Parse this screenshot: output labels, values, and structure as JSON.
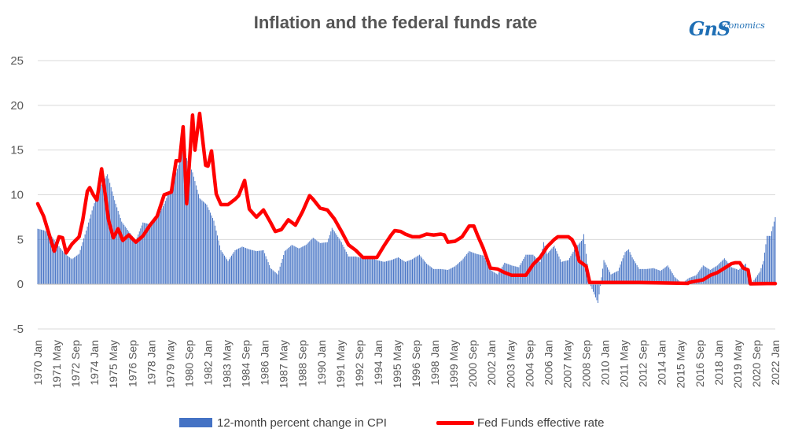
{
  "chart_data": {
    "type": "bar",
    "title": "Inflation and the federal funds rate",
    "ylim": [
      -5,
      25
    ],
    "y_ticks": [
      -5,
      0,
      5,
      10,
      15,
      20,
      25
    ],
    "x_tick_labels": [
      "1970 Jan",
      "1971 May",
      "1972 Sep",
      "1974 Jan",
      "1975 May",
      "1976 Sep",
      "1978 Jan",
      "1979 May",
      "1980 Sep",
      "1982 Jan",
      "1983 May",
      "1984 Sep",
      "1986 Jan",
      "1987 May",
      "1988 Sep",
      "1990 Jan",
      "1991 May",
      "1992 Sep",
      "1994 Jan",
      "1995 May",
      "1996 Sep",
      "1998 Jan",
      "1999 May",
      "2000 Sep",
      "2002 Jan",
      "2003 May",
      "2004 Sep",
      "2006 Jan",
      "2007 May",
      "2008 Sep",
      "2010 Jan",
      "2011 May",
      "2012 Sep",
      "2014 Jan",
      "2015 May",
      "2016 Sep",
      "2018 Jan",
      "2019 May",
      "2020 Sep",
      "2022 Jan"
    ],
    "x_range": [
      "1970-01",
      "2022-01"
    ],
    "legend_position": "bottom",
    "gridlines": true,
    "series": [
      {
        "name": "12-month percent change in CPI",
        "kind": "bar",
        "color": "#4472c4",
        "points": [
          [
            "1970-01",
            6.2
          ],
          [
            "1970-07",
            6.0
          ],
          [
            "1971-01",
            5.3
          ],
          [
            "1971-06",
            4.4
          ],
          [
            "1971-12",
            3.4
          ],
          [
            "1972-06",
            2.8
          ],
          [
            "1972-12",
            3.4
          ],
          [
            "1973-06",
            6.0
          ],
          [
            "1973-12",
            8.7
          ],
          [
            "1974-06",
            10.9
          ],
          [
            "1974-12",
            12.3
          ],
          [
            "1975-06",
            9.4
          ],
          [
            "1975-12",
            7.0
          ],
          [
            "1976-06",
            5.9
          ],
          [
            "1976-12",
            4.9
          ],
          [
            "1977-06",
            6.9
          ],
          [
            "1977-12",
            6.7
          ],
          [
            "1978-06",
            7.4
          ],
          [
            "1978-12",
            9.0
          ],
          [
            "1979-06",
            10.9
          ],
          [
            "1979-12",
            13.3
          ],
          [
            "1980-03",
            14.8
          ],
          [
            "1980-06",
            14.4
          ],
          [
            "1980-12",
            12.5
          ],
          [
            "1981-06",
            9.6
          ],
          [
            "1981-12",
            8.9
          ],
          [
            "1982-06",
            7.1
          ],
          [
            "1982-12",
            3.8
          ],
          [
            "1983-06",
            2.6
          ],
          [
            "1983-12",
            3.8
          ],
          [
            "1984-06",
            4.2
          ],
          [
            "1984-12",
            3.9
          ],
          [
            "1985-06",
            3.7
          ],
          [
            "1985-12",
            3.8
          ],
          [
            "1986-06",
            1.8
          ],
          [
            "1986-12",
            1.1
          ],
          [
            "1987-06",
            3.7
          ],
          [
            "1987-12",
            4.4
          ],
          [
            "1988-06",
            4.0
          ],
          [
            "1988-12",
            4.4
          ],
          [
            "1989-06",
            5.2
          ],
          [
            "1989-12",
            4.6
          ],
          [
            "1990-06",
            4.7
          ],
          [
            "1990-10",
            6.3
          ],
          [
            "1991-06",
            4.7
          ],
          [
            "1991-12",
            3.1
          ],
          [
            "1992-06",
            3.1
          ],
          [
            "1992-12",
            2.9
          ],
          [
            "1993-06",
            3.0
          ],
          [
            "1993-12",
            2.7
          ],
          [
            "1994-06",
            2.5
          ],
          [
            "1994-12",
            2.7
          ],
          [
            "1995-06",
            3.0
          ],
          [
            "1995-12",
            2.5
          ],
          [
            "1996-06",
            2.8
          ],
          [
            "1996-12",
            3.3
          ],
          [
            "1997-06",
            2.3
          ],
          [
            "1997-12",
            1.7
          ],
          [
            "1998-06",
            1.7
          ],
          [
            "1998-12",
            1.6
          ],
          [
            "1999-06",
            2.0
          ],
          [
            "1999-12",
            2.7
          ],
          [
            "2000-06",
            3.7
          ],
          [
            "2000-12",
            3.4
          ],
          [
            "2001-06",
            3.2
          ],
          [
            "2001-12",
            1.6
          ],
          [
            "2002-06",
            1.1
          ],
          [
            "2002-12",
            2.4
          ],
          [
            "2003-06",
            2.1
          ],
          [
            "2003-12",
            1.9
          ],
          [
            "2004-06",
            3.3
          ],
          [
            "2004-12",
            3.3
          ],
          [
            "2005-06",
            2.5
          ],
          [
            "2005-09",
            4.7
          ],
          [
            "2005-12",
            3.4
          ],
          [
            "2006-06",
            4.3
          ],
          [
            "2006-12",
            2.5
          ],
          [
            "2007-06",
            2.7
          ],
          [
            "2007-12",
            4.1
          ],
          [
            "2008-06",
            5.0
          ],
          [
            "2008-07",
            5.6
          ],
          [
            "2008-12",
            0.1
          ],
          [
            "2009-07",
            -2.1
          ],
          [
            "2009-12",
            2.7
          ],
          [
            "2010-06",
            1.1
          ],
          [
            "2010-12",
            1.5
          ],
          [
            "2011-06",
            3.6
          ],
          [
            "2011-09",
            3.9
          ],
          [
            "2011-12",
            3.0
          ],
          [
            "2012-06",
            1.7
          ],
          [
            "2012-12",
            1.7
          ],
          [
            "2013-06",
            1.8
          ],
          [
            "2013-12",
            1.5
          ],
          [
            "2014-06",
            2.1
          ],
          [
            "2014-12",
            0.8
          ],
          [
            "2015-06",
            0.1
          ],
          [
            "2015-12",
            0.7
          ],
          [
            "2016-06",
            1.0
          ],
          [
            "2016-12",
            2.1
          ],
          [
            "2017-06",
            1.6
          ],
          [
            "2017-12",
            2.1
          ],
          [
            "2018-06",
            2.9
          ],
          [
            "2018-12",
            1.9
          ],
          [
            "2019-06",
            1.6
          ],
          [
            "2019-12",
            2.3
          ],
          [
            "2020-05",
            0.1
          ],
          [
            "2020-12",
            1.4
          ],
          [
            "2021-03",
            2.6
          ],
          [
            "2021-06",
            5.4
          ],
          [
            "2021-09",
            5.4
          ],
          [
            "2021-12",
            7.0
          ],
          [
            "2022-01",
            7.5
          ]
        ]
      },
      {
        "name": "Fed Funds effective rate",
        "kind": "line",
        "color": "#ff0000",
        "points": [
          [
            "1970-01",
            9.0
          ],
          [
            "1970-06",
            7.6
          ],
          [
            "1970-12",
            5.0
          ],
          [
            "1971-03",
            3.7
          ],
          [
            "1971-07",
            5.3
          ],
          [
            "1971-10",
            5.2
          ],
          [
            "1972-01",
            3.5
          ],
          [
            "1972-06",
            4.5
          ],
          [
            "1972-12",
            5.3
          ],
          [
            "1973-03",
            7.1
          ],
          [
            "1973-07",
            10.4
          ],
          [
            "1973-09",
            10.8
          ],
          [
            "1973-12",
            10.0
          ],
          [
            "1974-03",
            9.4
          ],
          [
            "1974-07",
            12.9
          ],
          [
            "1974-10",
            10.1
          ],
          [
            "1975-01",
            7.1
          ],
          [
            "1975-05",
            5.2
          ],
          [
            "1975-09",
            6.2
          ],
          [
            "1976-01",
            4.9
          ],
          [
            "1976-06",
            5.5
          ],
          [
            "1976-12",
            4.7
          ],
          [
            "1977-06",
            5.4
          ],
          [
            "1977-12",
            6.6
          ],
          [
            "1978-06",
            7.6
          ],
          [
            "1978-12",
            10.0
          ],
          [
            "1979-06",
            10.3
          ],
          [
            "1979-10",
            13.8
          ],
          [
            "1980-01",
            13.8
          ],
          [
            "1980-04",
            17.6
          ],
          [
            "1980-07",
            9.0
          ],
          [
            "1980-12",
            18.9
          ],
          [
            "1981-02",
            15.0
          ],
          [
            "1981-06",
            19.1
          ],
          [
            "1981-11",
            13.3
          ],
          [
            "1982-01",
            13.2
          ],
          [
            "1982-04",
            14.9
          ],
          [
            "1982-08",
            10.1
          ],
          [
            "1982-12",
            8.9
          ],
          [
            "1983-06",
            8.9
          ],
          [
            "1983-12",
            9.5
          ],
          [
            "1984-03",
            9.9
          ],
          [
            "1984-08",
            11.6
          ],
          [
            "1984-12",
            8.4
          ],
          [
            "1985-06",
            7.5
          ],
          [
            "1985-12",
            8.3
          ],
          [
            "1986-06",
            6.9
          ],
          [
            "1986-10",
            5.9
          ],
          [
            "1987-03",
            6.1
          ],
          [
            "1987-09",
            7.2
          ],
          [
            "1987-12",
            6.9
          ],
          [
            "1988-03",
            6.6
          ],
          [
            "1988-09",
            8.1
          ],
          [
            "1989-03",
            9.9
          ],
          [
            "1989-06",
            9.5
          ],
          [
            "1989-12",
            8.5
          ],
          [
            "1990-06",
            8.3
          ],
          [
            "1990-12",
            7.3
          ],
          [
            "1991-06",
            5.9
          ],
          [
            "1991-12",
            4.4
          ],
          [
            "1992-06",
            3.8
          ],
          [
            "1992-12",
            3.0
          ],
          [
            "1993-06",
            3.0
          ],
          [
            "1993-12",
            3.0
          ],
          [
            "1994-06",
            4.3
          ],
          [
            "1994-12",
            5.5
          ],
          [
            "1995-03",
            6.0
          ],
          [
            "1995-08",
            5.9
          ],
          [
            "1995-12",
            5.6
          ],
          [
            "1996-06",
            5.3
          ],
          [
            "1996-12",
            5.3
          ],
          [
            "1997-06",
            5.6
          ],
          [
            "1997-12",
            5.5
          ],
          [
            "1998-06",
            5.6
          ],
          [
            "1998-09",
            5.5
          ],
          [
            "1998-12",
            4.7
          ],
          [
            "1999-06",
            4.8
          ],
          [
            "1999-12",
            5.3
          ],
          [
            "2000-06",
            6.5
          ],
          [
            "2000-10",
            6.5
          ],
          [
            "2001-01",
            5.5
          ],
          [
            "2001-06",
            4.0
          ],
          [
            "2001-12",
            1.8
          ],
          [
            "2002-06",
            1.7
          ],
          [
            "2002-12",
            1.3
          ],
          [
            "2003-06",
            1.0
          ],
          [
            "2003-12",
            1.0
          ],
          [
            "2004-06",
            1.0
          ],
          [
            "2004-12",
            2.2
          ],
          [
            "2005-06",
            3.0
          ],
          [
            "2005-12",
            4.2
          ],
          [
            "2006-06",
            5.0
          ],
          [
            "2006-09",
            5.3
          ],
          [
            "2007-06",
            5.3
          ],
          [
            "2007-09",
            5.0
          ],
          [
            "2007-12",
            4.2
          ],
          [
            "2008-03",
            2.6
          ],
          [
            "2008-09",
            2.0
          ],
          [
            "2008-12",
            0.2
          ],
          [
            "2010-06",
            0.2
          ],
          [
            "2012-06",
            0.2
          ],
          [
            "2015-11",
            0.1
          ],
          [
            "2015-12",
            0.2
          ],
          [
            "2016-12",
            0.5
          ],
          [
            "2017-06",
            1.0
          ],
          [
            "2017-12",
            1.3
          ],
          [
            "2018-06",
            1.8
          ],
          [
            "2018-12",
            2.3
          ],
          [
            "2019-03",
            2.4
          ],
          [
            "2019-07",
            2.4
          ],
          [
            "2019-10",
            1.8
          ],
          [
            "2020-02",
            1.6
          ],
          [
            "2020-04",
            0.05
          ],
          [
            "2021-06",
            0.08
          ],
          [
            "2022-01",
            0.08
          ]
        ]
      }
    ]
  },
  "logo": {
    "main": "GnS",
    "sub": "economics",
    "color": "#1f6fb5"
  },
  "legend": {
    "items": [
      "12-month percent change in CPI",
      "Fed Funds effective rate"
    ]
  }
}
